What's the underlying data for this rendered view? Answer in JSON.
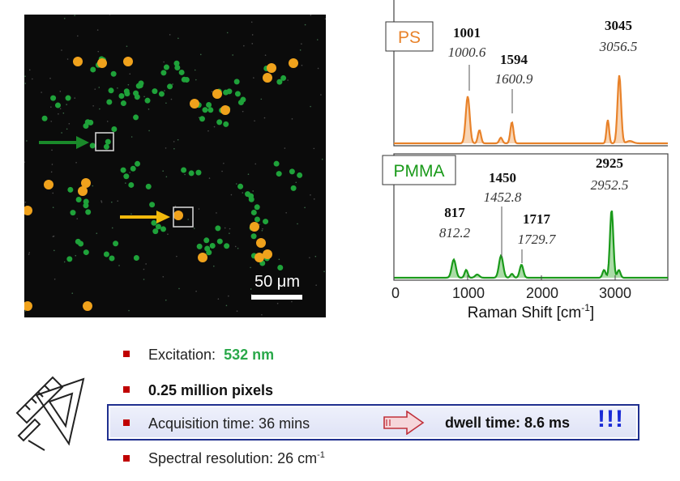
{
  "micrograph": {
    "scale_bar_label": "50 μm",
    "colors": {
      "ps": "#f0a21c",
      "pmma": "#1fa23a",
      "background": "#0c0c0c",
      "arrow_green": "#1a8a2a",
      "arrow_yellow": "#f2b90c"
    }
  },
  "spectra": {
    "ps": {
      "label": "PS",
      "color": "#e8822a",
      "peaks": [
        {
          "ref": "1001",
          "meas": "1000.6"
        },
        {
          "ref": "1594",
          "meas": "1600.9"
        },
        {
          "ref": "3045",
          "meas": "3056.5"
        }
      ]
    },
    "pmma": {
      "label": "PMMA",
      "color": "#1a9a1a",
      "peaks": [
        {
          "ref": "817",
          "meas": "812.2"
        },
        {
          "ref": "1450",
          "meas": "1452.8"
        },
        {
          "ref": "1717",
          "meas": "1729.7"
        },
        {
          "ref": "2925",
          "meas": "2952.5"
        }
      ]
    },
    "x_ticks": [
      "0",
      "1000",
      "2000",
      "3000"
    ],
    "x_label_main": "Raman Shift [cm",
    "x_label_sup": "-1",
    "x_label_end": "]"
  },
  "bullets": {
    "excitation_label": "Excitation:",
    "excitation_value": "532 nm",
    "pixels": "0.25 million pixels",
    "acquisition": "Acquisition time: 36 mins",
    "dwell": "dwell time: 8.6 ms",
    "exclaim": "!!!",
    "resolution_main": "Spectral resolution: 26 cm",
    "resolution_sup": "-1"
  },
  "icons": {
    "arrow": "right-arrow-icon",
    "tools": "ruler-triangle-icon"
  },
  "colors": {
    "bullet": "#c00000",
    "box_border": "#1f2f8f",
    "exclaim": "#1a2bd6",
    "green_text": "#2aa84a"
  }
}
